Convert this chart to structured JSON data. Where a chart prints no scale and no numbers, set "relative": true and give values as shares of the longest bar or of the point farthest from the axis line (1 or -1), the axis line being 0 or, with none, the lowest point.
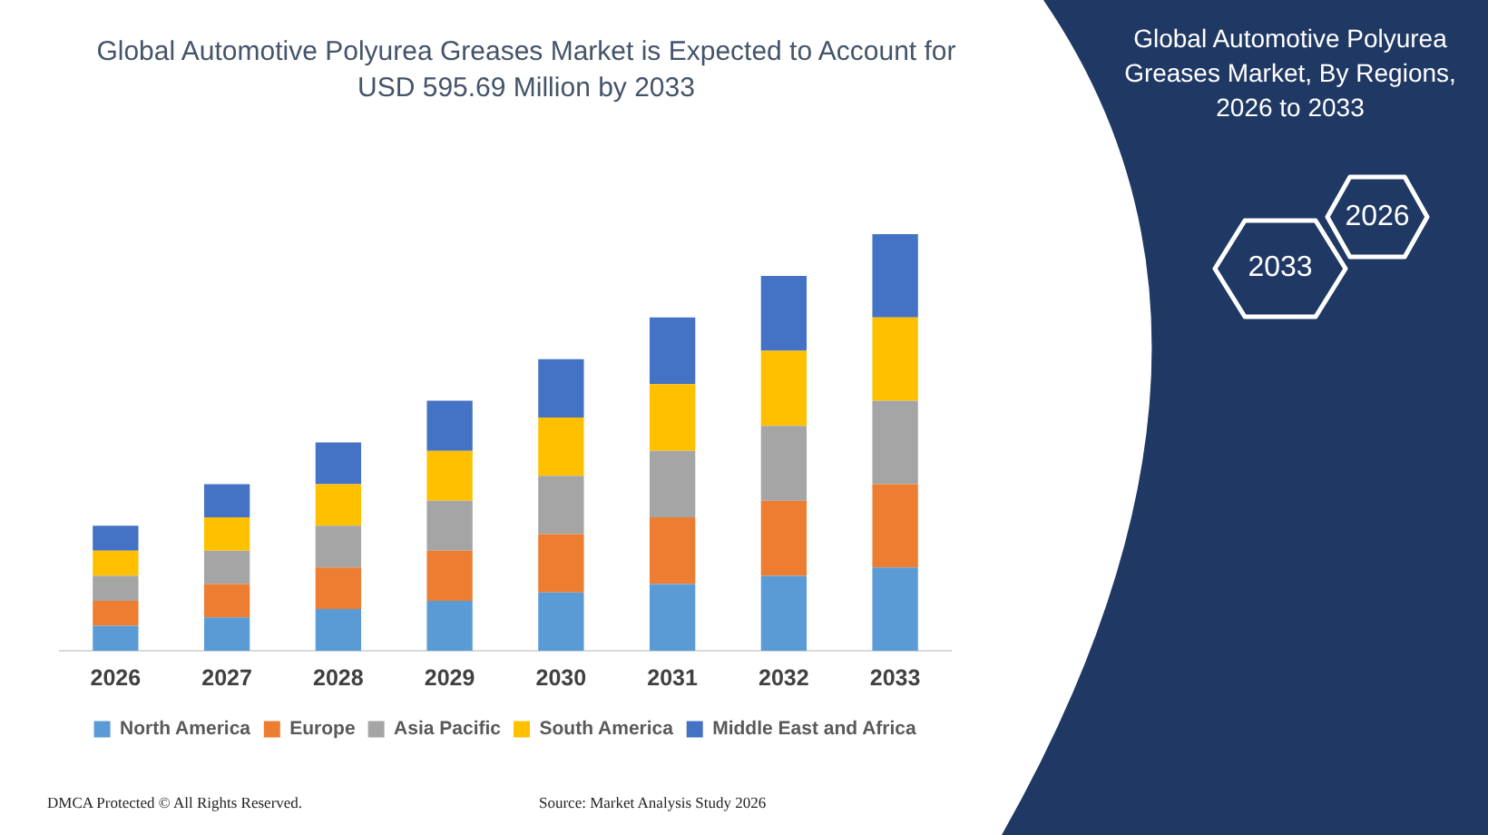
{
  "chart_data": {
    "type": "bar",
    "title": "Global Automotive Polyurea Greases Market is Expected to Account for USD 595.69 Million by 2033",
    "categories": [
      "2026",
      "2027",
      "2028",
      "2029",
      "2030",
      "2031",
      "2032",
      "2033"
    ],
    "stacked": true,
    "relative": true,
    "legend": "bottom",
    "series": [
      {
        "name": "North America",
        "color": "#5b9bd5",
        "values": [
          0.06,
          0.08,
          0.1,
          0.12,
          0.14,
          0.16,
          0.18,
          0.2
        ]
      },
      {
        "name": "Europe",
        "color": "#ed7d31",
        "values": [
          0.06,
          0.08,
          0.1,
          0.12,
          0.14,
          0.16,
          0.18,
          0.2
        ]
      },
      {
        "name": "Asia Pacific",
        "color": "#a5a5a5",
        "values": [
          0.06,
          0.08,
          0.1,
          0.12,
          0.14,
          0.16,
          0.18,
          0.2
        ]
      },
      {
        "name": "South America",
        "color": "#ffc000",
        "values": [
          0.06,
          0.08,
          0.1,
          0.12,
          0.14,
          0.16,
          0.18,
          0.2
        ]
      },
      {
        "name": "Middle East and Africa",
        "color": "#4472c4",
        "values": [
          0.06,
          0.08,
          0.1,
          0.12,
          0.14,
          0.16,
          0.18,
          0.2
        ]
      }
    ],
    "annotations": [
      "Global Automotive Polyurea Greases Market, By Regions, 2026 to 2033",
      "2026",
      "2033",
      "DMCA Protected © All Rights Reserved.",
      "Source: Market Analysis Study 2026"
    ]
  }
}
